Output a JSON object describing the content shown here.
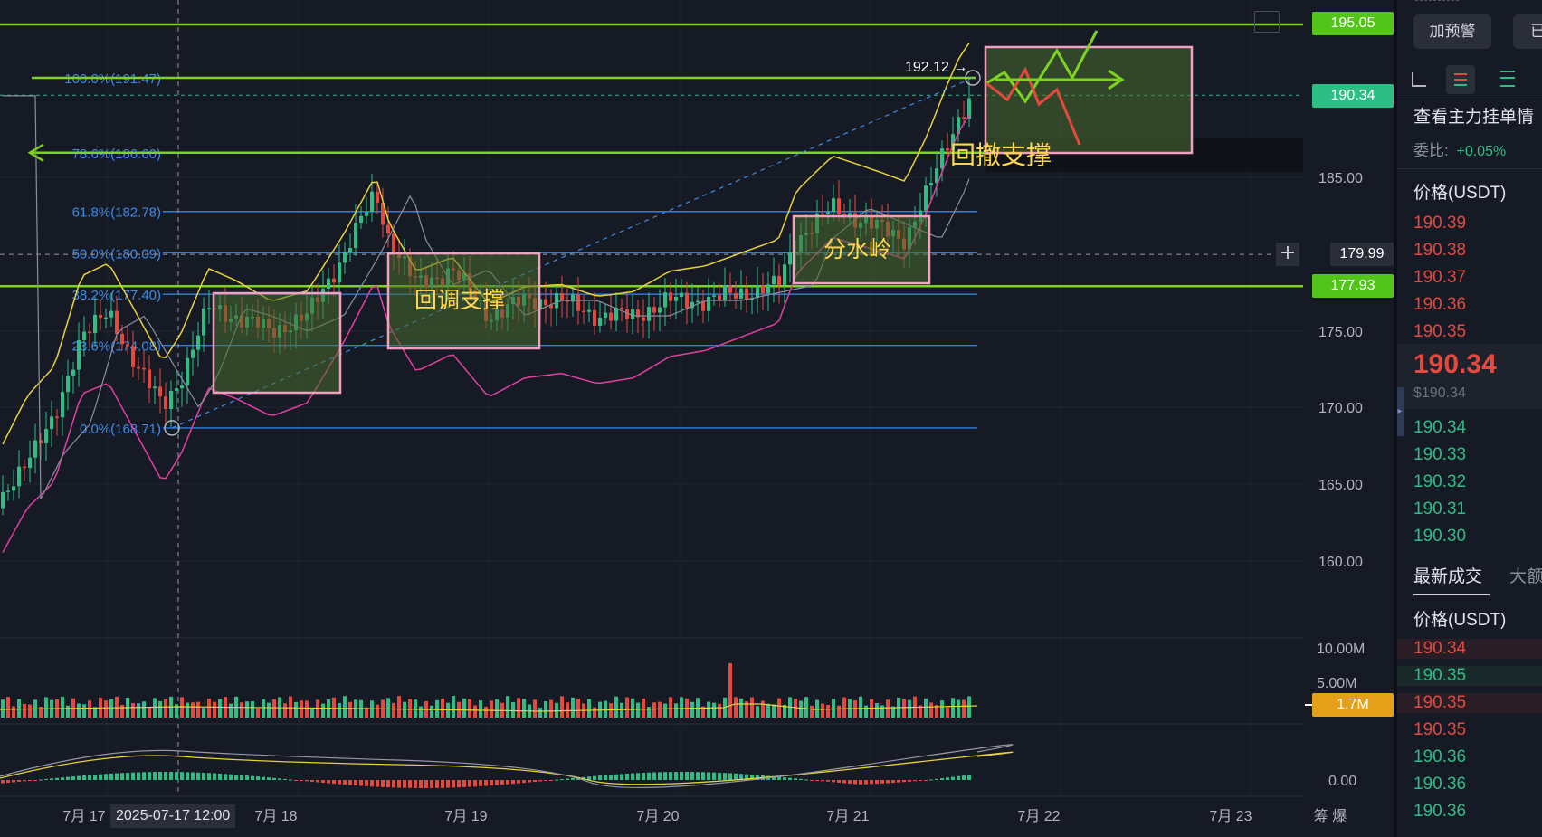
{
  "chart": {
    "y_axis_ticks": [
      "185.00",
      "175.00",
      "170.00",
      "165.00",
      "160.00"
    ],
    "volume_axis_ticks": [
      "10.00M",
      "5.00M"
    ],
    "macd_axis_tick": "0.00",
    "x_axis_ticks": [
      "7月 17",
      "7月 18",
      "7月 19",
      "7月 20",
      "7月 21",
      "7月 22",
      "7月 23"
    ],
    "crosshair_time": "2025-07-17 12:00",
    "axis_corner": "筹 爆",
    "price_tags": {
      "level_top": "195.05",
      "last_price": "190.34",
      "crosshair_price": "179.99",
      "level_support": "177.93",
      "volume": "1.7M"
    },
    "fib_levels": [
      {
        "label": "100.0%(191.47)",
        "price": 191.47
      },
      {
        "label": "78.6%(186.60)",
        "price": 186.6
      },
      {
        "label": "61.8%(182.78)",
        "price": 182.78
      },
      {
        "label": "50.0%(180.09)",
        "price": 180.09
      },
      {
        "label": "38.2%(177.40)",
        "price": 177.4
      },
      {
        "label": "23.6%(174.08)",
        "price": 174.08
      },
      {
        "label": "0.0%(168.71)",
        "price": 168.71
      }
    ],
    "high_marker": "192.12",
    "box_labels": {
      "pullback_support": "回调支撑",
      "watershed": "分水岭",
      "retrace_support": "回撤支撑"
    },
    "colors": {
      "up": "#2ebd85",
      "down": "#e5483d",
      "fib": "#2f7fe0",
      "level": "#7ed321",
      "boll_upper": "#e6d23a",
      "boll_lower": "#e040a0",
      "box_border": "#f0a0c0",
      "box_fill": "#4a6b2e"
    }
  },
  "right_panel": {
    "add_alert": "加预警",
    "already": "已i",
    "order_book_link": "查看主力挂单情",
    "ratio_label": "委比:",
    "ratio_value": "+0.05%",
    "price_header": "价格(USDT)",
    "asks": [
      "190.39",
      "190.38",
      "190.37",
      "190.36",
      "190.35"
    ],
    "last_price": "190.34",
    "last_price_usd": "$190.34",
    "bids": [
      "190.34",
      "190.33",
      "190.32",
      "190.31",
      "190.30"
    ],
    "trades_tab": "最新成交",
    "large_tab": "大额",
    "trades_header": "价格(USDT)",
    "trades": [
      {
        "price": "190.34",
        "side": "sell"
      },
      {
        "price": "190.35",
        "side": "buy"
      },
      {
        "price": "190.35",
        "side": "sell"
      },
      {
        "price": "190.35",
        "side": "sell"
      },
      {
        "price": "190.36",
        "side": "buy"
      },
      {
        "price": "190.36",
        "side": "buy"
      },
      {
        "price": "190.36",
        "side": "buy"
      }
    ]
  }
}
